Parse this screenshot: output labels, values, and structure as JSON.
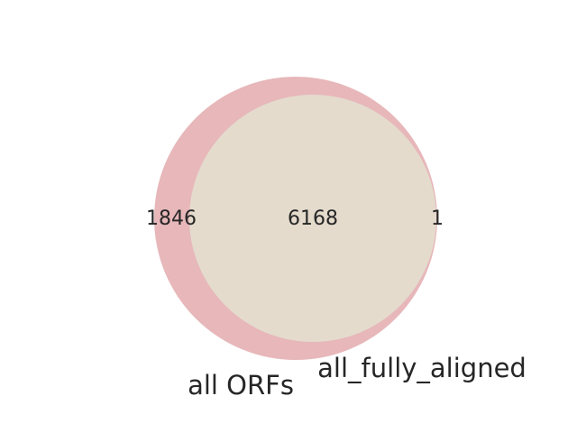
{
  "sets": [
    {
      "id": "A",
      "label": "all ORFs",
      "color": "#e0a3a7"
    },
    {
      "id": "B",
      "label": "all_fully_aligned",
      "color": "#e4dccd"
    }
  ],
  "regions": {
    "only_A": "1846",
    "A_and_B": "6168",
    "only_B": "1"
  }
}
